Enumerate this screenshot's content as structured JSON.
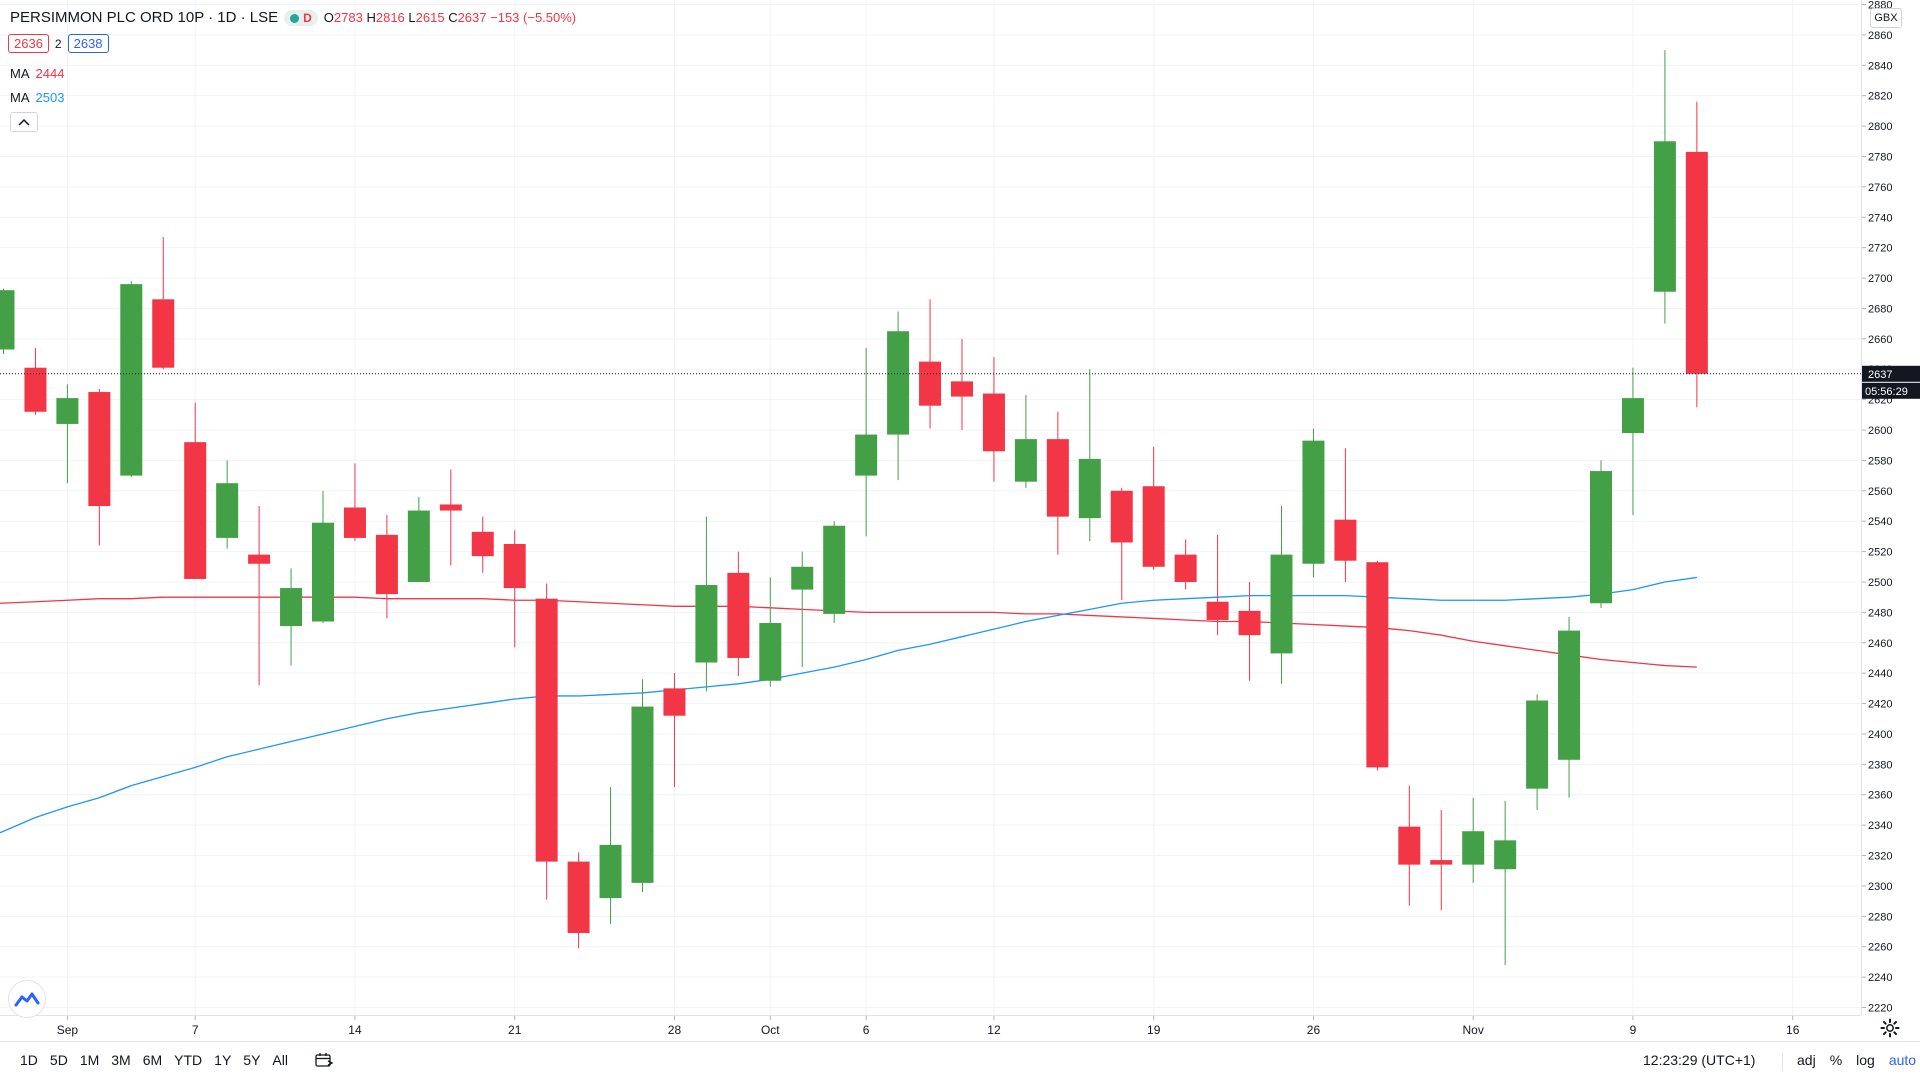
{
  "header": {
    "symbol_title": "PERSIMMON PLC ORD 10P · 1D · LSE",
    "live_badge": "D",
    "open_label": "O",
    "open": "2783",
    "high_label": "H",
    "high": "2816",
    "low_label": "L",
    "low": "2615",
    "close_label": "C",
    "close": "2637",
    "change": "−153 (−5.50%)",
    "bid": "2636",
    "spread": "2",
    "ask": "2638",
    "collapse_icon": "chevron-up-icon"
  },
  "indicators": [
    {
      "label": "MA",
      "value": "2444",
      "color": "#f23645"
    },
    {
      "label": "MA",
      "value": "2503",
      "color": "#2196f3"
    }
  ],
  "price_axis": {
    "unit": "GBX",
    "last_price_label": "2637",
    "countdown": "05:56:29"
  },
  "bottom_bar": {
    "ranges": [
      "1D",
      "5D",
      "1M",
      "3M",
      "6M",
      "YTD",
      "1Y",
      "5Y",
      "All"
    ],
    "calendar_icon": "calendar-icon",
    "time": "12:23:29 (UTC+1)",
    "adj": "adj",
    "percent": "%",
    "log": "log",
    "auto": "auto"
  },
  "logo_icon": "tradingview-logo-icon",
  "settings_icon": "gear-icon",
  "chart_data": {
    "type": "candlestick",
    "title": "PERSIMMON PLC ORD 10P · 1D · LSE",
    "currency": "GBX",
    "ylim": [
      2220,
      2880
    ],
    "y_ticks": [
      2220,
      2240,
      2260,
      2280,
      2300,
      2320,
      2340,
      2360,
      2380,
      2400,
      2420,
      2440,
      2460,
      2480,
      2500,
      2520,
      2540,
      2560,
      2580,
      2600,
      2620,
      2640,
      2660,
      2680,
      2700,
      2720,
      2740,
      2760,
      2780,
      2800,
      2820,
      2840,
      2860,
      2880
    ],
    "x_tick_labels": [
      {
        "label": "Sep",
        "date": "2020-09-01"
      },
      {
        "label": "7",
        "date": "2020-09-07"
      },
      {
        "label": "14",
        "date": "2020-09-14"
      },
      {
        "label": "21",
        "date": "2020-09-21"
      },
      {
        "label": "28",
        "date": "2020-09-28"
      },
      {
        "label": "Oct",
        "date": "2020-10-01"
      },
      {
        "label": "6",
        "date": "2020-10-06"
      },
      {
        "label": "12",
        "date": "2020-10-12"
      },
      {
        "label": "19",
        "date": "2020-10-19"
      },
      {
        "label": "26",
        "date": "2020-10-26"
      },
      {
        "label": "Nov",
        "date": "2020-11-02"
      },
      {
        "label": "9",
        "date": "2020-11-09"
      },
      {
        "label": "16",
        "date": "2020-11-16"
      }
    ],
    "last_price": 2637,
    "candles": [
      {
        "date": "2020-08-28",
        "o": 2653,
        "h": 2693,
        "l": 2650,
        "c": 2692
      },
      {
        "date": "2020-08-31",
        "o": 2641,
        "h": 2654,
        "l": 2610,
        "c": 2612
      },
      {
        "date": "2020-09-01",
        "o": 2604,
        "h": 2630,
        "l": 2565,
        "c": 2621
      },
      {
        "date": "2020-09-02",
        "o": 2625,
        "h": 2627,
        "l": 2524,
        "c": 2550
      },
      {
        "date": "2020-09-03",
        "o": 2570,
        "h": 2698,
        "l": 2569,
        "c": 2696
      },
      {
        "date": "2020-09-04",
        "o": 2686,
        "h": 2727,
        "l": 2640,
        "c": 2641
      },
      {
        "date": "2020-09-07",
        "o": 2592,
        "h": 2618,
        "l": 2502,
        "c": 2502
      },
      {
        "date": "2020-09-08",
        "o": 2529,
        "h": 2580,
        "l": 2522,
        "c": 2565
      },
      {
        "date": "2020-09-09",
        "o": 2518,
        "h": 2550,
        "l": 2432,
        "c": 2512
      },
      {
        "date": "2020-09-10",
        "o": 2471,
        "h": 2509,
        "l": 2445,
        "c": 2496
      },
      {
        "date": "2020-09-11",
        "o": 2474,
        "h": 2560,
        "l": 2473,
        "c": 2539
      },
      {
        "date": "2020-09-14",
        "o": 2549,
        "h": 2578,
        "l": 2527,
        "c": 2529
      },
      {
        "date": "2020-09-15",
        "o": 2531,
        "h": 2544,
        "l": 2476,
        "c": 2492
      },
      {
        "date": "2020-09-16",
        "o": 2500,
        "h": 2556,
        "l": 2500,
        "c": 2547
      },
      {
        "date": "2020-09-17",
        "o": 2551,
        "h": 2574,
        "l": 2511,
        "c": 2547
      },
      {
        "date": "2020-09-18",
        "o": 2533,
        "h": 2543,
        "l": 2506,
        "c": 2517
      },
      {
        "date": "2020-09-21",
        "o": 2525,
        "h": 2534,
        "l": 2457,
        "c": 2496
      },
      {
        "date": "2020-09-22",
        "o": 2489,
        "h": 2499,
        "l": 2291,
        "c": 2316
      },
      {
        "date": "2020-09-23",
        "o": 2316,
        "h": 2322,
        "l": 2259,
        "c": 2269
      },
      {
        "date": "2020-09-24",
        "o": 2292,
        "h": 2365,
        "l": 2275,
        "c": 2327
      },
      {
        "date": "2020-09-25",
        "o": 2302,
        "h": 2436,
        "l": 2296,
        "c": 2418
      },
      {
        "date": "2020-09-28",
        "o": 2430,
        "h": 2440,
        "l": 2365,
        "c": 2412
      },
      {
        "date": "2020-09-29",
        "o": 2447,
        "h": 2543,
        "l": 2428,
        "c": 2498
      },
      {
        "date": "2020-09-30",
        "o": 2506,
        "h": 2520,
        "l": 2438,
        "c": 2450
      },
      {
        "date": "2020-10-01",
        "o": 2435,
        "h": 2503,
        "l": 2431,
        "c": 2473
      },
      {
        "date": "2020-10-02",
        "o": 2495,
        "h": 2520,
        "l": 2444,
        "c": 2510
      },
      {
        "date": "2020-10-05",
        "o": 2479,
        "h": 2540,
        "l": 2473,
        "c": 2537
      },
      {
        "date": "2020-10-06",
        "o": 2570,
        "h": 2654,
        "l": 2530,
        "c": 2597
      },
      {
        "date": "2020-10-07",
        "o": 2597,
        "h": 2678,
        "l": 2567,
        "c": 2665
      },
      {
        "date": "2020-10-08",
        "o": 2645,
        "h": 2686,
        "l": 2601,
        "c": 2616
      },
      {
        "date": "2020-10-09",
        "o": 2632,
        "h": 2660,
        "l": 2600,
        "c": 2622
      },
      {
        "date": "2020-10-12",
        "o": 2624,
        "h": 2648,
        "l": 2566,
        "c": 2586
      },
      {
        "date": "2020-10-13",
        "o": 2566,
        "h": 2623,
        "l": 2562,
        "c": 2594
      },
      {
        "date": "2020-10-14",
        "o": 2594,
        "h": 2612,
        "l": 2518,
        "c": 2543
      },
      {
        "date": "2020-10-15",
        "o": 2542,
        "h": 2640,
        "l": 2527,
        "c": 2581
      },
      {
        "date": "2020-10-16",
        "o": 2560,
        "h": 2562,
        "l": 2488,
        "c": 2526
      },
      {
        "date": "2020-10-19",
        "o": 2563,
        "h": 2589,
        "l": 2508,
        "c": 2510
      },
      {
        "date": "2020-10-20",
        "o": 2518,
        "h": 2528,
        "l": 2495,
        "c": 2500
      },
      {
        "date": "2020-10-21",
        "o": 2487,
        "h": 2531,
        "l": 2465,
        "c": 2475
      },
      {
        "date": "2020-10-22",
        "o": 2481,
        "h": 2500,
        "l": 2435,
        "c": 2465
      },
      {
        "date": "2020-10-23",
        "o": 2453,
        "h": 2550,
        "l": 2433,
        "c": 2518
      },
      {
        "date": "2020-10-26",
        "o": 2512,
        "h": 2601,
        "l": 2503,
        "c": 2593
      },
      {
        "date": "2020-10-27",
        "o": 2541,
        "h": 2588,
        "l": 2500,
        "c": 2514
      },
      {
        "date": "2020-10-28",
        "o": 2513,
        "h": 2514,
        "l": 2376,
        "c": 2378
      },
      {
        "date": "2020-10-29",
        "o": 2339,
        "h": 2366,
        "l": 2287,
        "c": 2314
      },
      {
        "date": "2020-10-30",
        "o": 2317,
        "h": 2350,
        "l": 2284,
        "c": 2314
      },
      {
        "date": "2020-11-02",
        "o": 2314,
        "h": 2358,
        "l": 2302,
        "c": 2336
      },
      {
        "date": "2020-11-03",
        "o": 2311,
        "h": 2356,
        "l": 2248,
        "c": 2330
      },
      {
        "date": "2020-11-04",
        "o": 2364,
        "h": 2426,
        "l": 2350,
        "c": 2422
      },
      {
        "date": "2020-11-05",
        "o": 2383,
        "h": 2477,
        "l": 2358,
        "c": 2468
      },
      {
        "date": "2020-11-06",
        "o": 2486,
        "h": 2580,
        "l": 2483,
        "c": 2573
      },
      {
        "date": "2020-11-09",
        "o": 2598,
        "h": 2641,
        "l": 2544,
        "c": 2621
      },
      {
        "date": "2020-11-10",
        "o": 2691,
        "h": 2850,
        "l": 2670,
        "c": 2790
      },
      {
        "date": "2020-11-11",
        "o": 2783,
        "h": 2816,
        "l": 2615,
        "c": 2637
      }
    ],
    "moving_averages": [
      {
        "label": "MA",
        "color": "#f23645",
        "points": [
          2486,
          2487,
          2488,
          2489,
          2489,
          2490,
          2490,
          2490,
          2490,
          2490,
          2490,
          2490,
          2489,
          2489,
          2489,
          2489,
          2488,
          2488,
          2487,
          2486,
          2485,
          2484,
          2484,
          2484,
          2483,
          2482,
          2481,
          2480,
          2480,
          2480,
          2480,
          2480,
          2479,
          2479,
          2478,
          2477,
          2476,
          2475,
          2474,
          2474,
          2473,
          2472,
          2471,
          2470,
          2468,
          2465,
          2461,
          2458,
          2455,
          2452,
          2449,
          2447,
          2445,
          2444
        ]
      },
      {
        "label": "MA",
        "color": "#2196f3",
        "points": [
          2335,
          2345,
          2352,
          2358,
          2366,
          2372,
          2378,
          2385,
          2390,
          2395,
          2400,
          2405,
          2410,
          2414,
          2417,
          2420,
          2423,
          2425,
          2425,
          2426,
          2427,
          2429,
          2431,
          2433,
          2436,
          2440,
          2444,
          2449,
          2455,
          2459,
          2464,
          2469,
          2474,
          2478,
          2482,
          2486,
          2488,
          2489,
          2490,
          2491,
          2491,
          2491,
          2491,
          2490,
          2489,
          2488,
          2488,
          2488,
          2489,
          2490,
          2492,
          2495,
          2500,
          2503
        ]
      }
    ]
  }
}
